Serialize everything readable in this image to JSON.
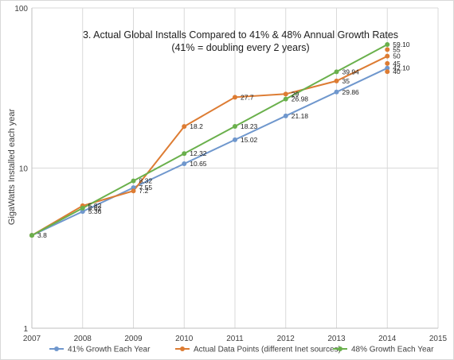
{
  "chart_data": {
    "type": "line",
    "title": "3. Actual Global Installs Compared to 41% & 48% Annual Growth Rates",
    "subtitle": "(41% = doubling every 2 years)",
    "xlabel": "",
    "ylabel": "GigaWatts Installed each year",
    "y_scale": "log",
    "ylim": [
      1,
      100
    ],
    "xlim": [
      2007,
      2015
    ],
    "x_ticks": [
      "2007",
      "2008",
      "2009",
      "2010",
      "2011",
      "2012",
      "2013",
      "2014",
      "2015"
    ],
    "y_ticks": [
      "1",
      "10",
      "100"
    ],
    "grid": true,
    "legend_position": "bottom",
    "series": [
      {
        "name": "41% Growth Each Year",
        "color": "#6f97cd",
        "points": [
          {
            "x": 2007,
            "y": 3.8,
            "label": "3.8"
          },
          {
            "x": 2008,
            "y": 5.36,
            "label": "5.36"
          },
          {
            "x": 2009,
            "y": 7.55,
            "label": "7.55"
          },
          {
            "x": 2010,
            "y": 10.65,
            "label": "10.65"
          },
          {
            "x": 2011,
            "y": 15.02,
            "label": "15.02"
          },
          {
            "x": 2012,
            "y": 21.18,
            "label": "21.18"
          },
          {
            "x": 2013,
            "y": 29.86,
            "label": "29.86"
          },
          {
            "x": 2014,
            "y": 42.1,
            "label": "42.10"
          }
        ]
      },
      {
        "name": "Actual Data Points (different Inet sources)",
        "color": "#dd7c33",
        "points": [
          {
            "x": 2007,
            "y": 3.8,
            "label": ""
          },
          {
            "x": 2008,
            "y": 5.82,
            "label": "5.82"
          },
          {
            "x": 2009,
            "y": 7.2,
            "label": "7.2"
          },
          {
            "x": 2010,
            "y": 18.2,
            "label": "18.2"
          },
          {
            "x": 2011,
            "y": 27.7,
            "label": "27.7"
          },
          {
            "x": 2012,
            "y": 29,
            "label": "29"
          },
          {
            "x": 2013,
            "y": 35,
            "label": "35"
          },
          {
            "x": 2014,
            "y": 50,
            "label": "50"
          }
        ],
        "extra_points": [
          {
            "x": 2014,
            "y": 55,
            "label": "55"
          },
          {
            "x": 2014,
            "y": 45,
            "label": "45"
          },
          {
            "x": 2014,
            "y": 40,
            "label": "40"
          }
        ]
      },
      {
        "name": "48% Growth Each Year",
        "color": "#6ab04c",
        "points": [
          {
            "x": 2007,
            "y": 3.8,
            "label": ""
          },
          {
            "x": 2008,
            "y": 5.62,
            "label": "5.62"
          },
          {
            "x": 2009,
            "y": 8.32,
            "label": "8.32"
          },
          {
            "x": 2010,
            "y": 12.32,
            "label": "12.32"
          },
          {
            "x": 2011,
            "y": 18.23,
            "label": "18.23"
          },
          {
            "x": 2012,
            "y": 26.98,
            "label": "26.98"
          },
          {
            "x": 2013,
            "y": 39.94,
            "label": "39.94"
          },
          {
            "x": 2014,
            "y": 59.1,
            "label": "59.10"
          }
        ]
      }
    ]
  }
}
